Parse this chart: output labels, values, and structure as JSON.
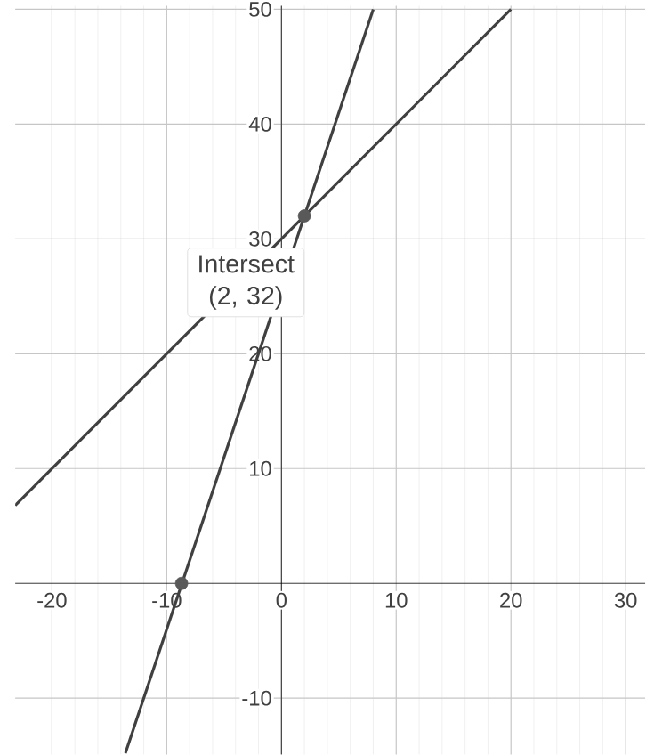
{
  "chart_data": {
    "type": "line",
    "xlim": [
      -23.2,
      31.7
    ],
    "ylim": [
      -14.9,
      50.3
    ],
    "xticks": [
      -20,
      -10,
      0,
      10,
      20,
      30
    ],
    "yticks": [
      -10,
      10,
      20,
      30,
      40,
      50
    ],
    "grid": true,
    "series": [
      {
        "color": "#404040",
        "x": [
          -23.2,
          20
        ],
        "values": [
          6.8,
          50
        ]
      },
      {
        "color": "#404040",
        "x": [
          -13.6,
          8
        ],
        "values": [
          -14.8,
          50
        ]
      },
      {
        "type": "scatter",
        "marker": "circle",
        "color": "#595959",
        "x": [
          -8.7,
          2
        ],
        "values": [
          0,
          32
        ]
      }
    ],
    "annotations": [
      {
        "text": "Intersect (2, 32)",
        "x": 2,
        "y": 32
      }
    ]
  }
}
